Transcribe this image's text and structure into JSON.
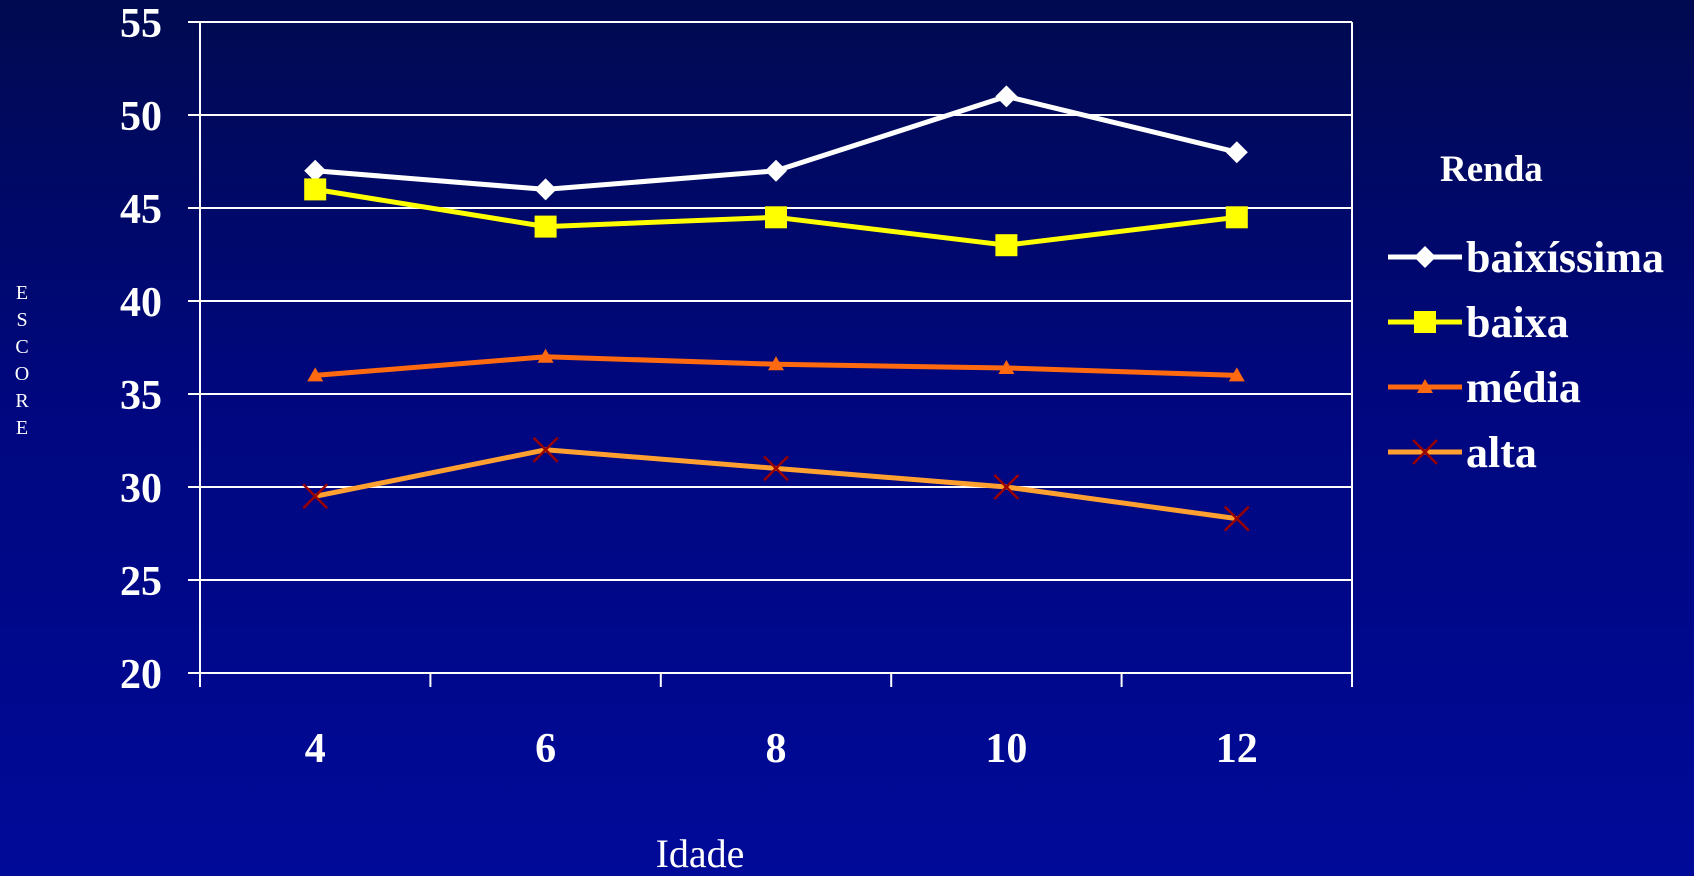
{
  "chart_data": {
    "type": "line",
    "x": [
      4,
      6,
      8,
      10,
      12
    ],
    "xlabel": "Idade",
    "ylabel": "ESCORE",
    "ylim": [
      20,
      55
    ],
    "yticks": [
      20,
      25,
      30,
      35,
      40,
      45,
      50,
      55
    ],
    "grid": true,
    "legend_title": "Renda",
    "legend_position": "right",
    "series": [
      {
        "name": "baixíssima",
        "values": [
          47,
          46,
          47,
          51,
          48
        ],
        "color": "#ffffff",
        "marker": "diamond"
      },
      {
        "name": "baixa",
        "values": [
          46,
          44,
          44.5,
          43,
          44.5
        ],
        "color": "#ffff00",
        "marker": "square"
      },
      {
        "name": "média",
        "values": [
          36,
          37,
          36.6,
          36.4,
          36
        ],
        "color": "#ff6a10",
        "marker": "triangle"
      },
      {
        "name": "alta",
        "values": [
          29.5,
          32,
          31,
          30,
          28.3
        ],
        "color": "#ffa030",
        "marker": "x",
        "marker_color": "#9a0000"
      }
    ]
  }
}
